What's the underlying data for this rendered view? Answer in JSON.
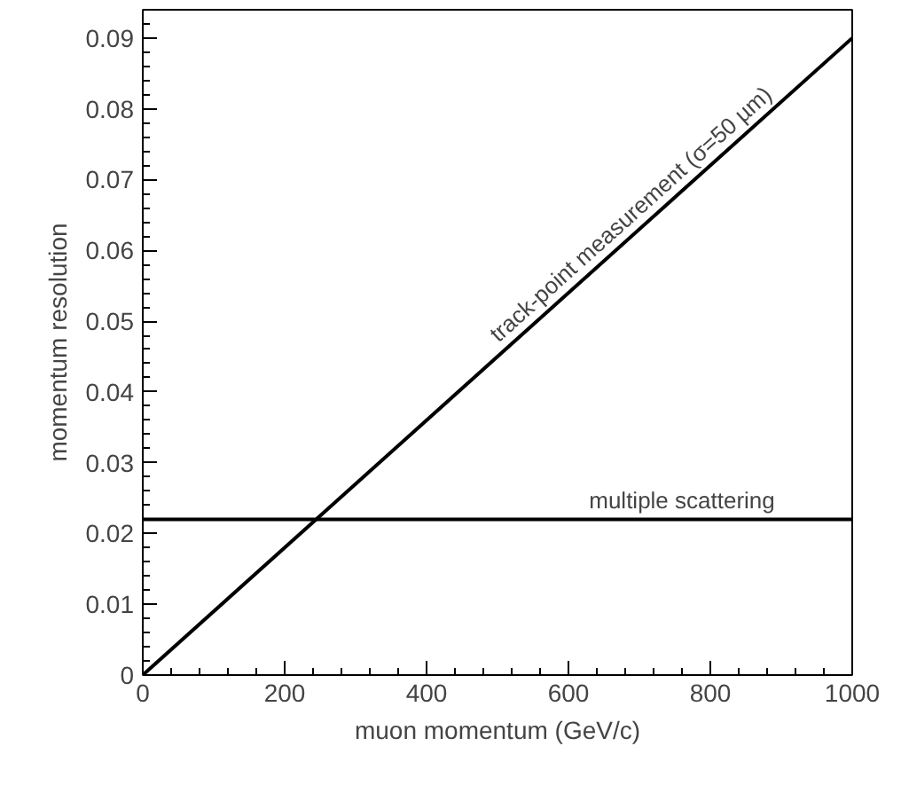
{
  "chart_data": {
    "type": "line",
    "xlabel": "muon momentum (GeV/c)",
    "ylabel": "momentum resolution",
    "series": [
      {
        "values": [
          0,
          0.09
        ],
        "color": "#000000"
      },
      {
        "values": [
          0.022,
          0.022
        ],
        "color": "#000000"
      }
    ],
    "annotations": [
      {
        "text": "track-point measurement (σ=50 µm)",
        "x": 700,
        "y": 0.063
      },
      {
        "text": "multiple scattering",
        "x": 760,
        "y": 0.022
      }
    ],
    "x": [
      0,
      1000
    ],
    "xlim": [
      0,
      1000
    ],
    "ylim": [
      0,
      0.094
    ],
    "xticks": [
      0,
      200,
      400,
      600,
      800,
      1000
    ],
    "yticks": [
      0,
      0.01,
      0.02,
      0.03,
      0.04,
      0.05,
      0.06,
      0.07,
      0.08,
      0.09
    ],
    "grid": false,
    "marker": "none",
    "line_style": "solid"
  }
}
